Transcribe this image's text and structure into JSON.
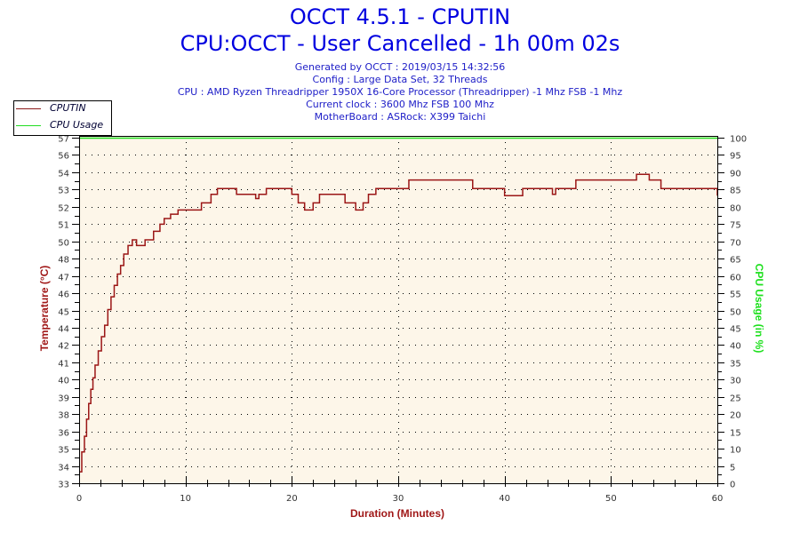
{
  "header": {
    "title": "OCCT 4.5.1 - CPUTIN",
    "subtitle": "CPU:OCCT - User Cancelled - 1h 00m 02s",
    "info_lines": [
      "Generated by OCCT : 2019/03/15 14:32:56",
      "Config : Large Data Set, 32 Threads",
      "CPU : AMD Ryzen Threadripper 1950X 16-Core Processor (Threadripper) -1 Mhz FSB -1 Mhz",
      "Current clock : 3600 Mhz FSB 100 Mhz",
      "MotherBoard : ASRock: X399 Taichi"
    ]
  },
  "legend": {
    "items": [
      {
        "label": "CPUTIN",
        "color": "#8b1a1a"
      },
      {
        "label": "CPU Usage",
        "color": "#22dd22"
      }
    ]
  },
  "colors": {
    "plot_bg": "#fdf6e9",
    "temp_line": "#9b1616",
    "usage_line": "#22e022",
    "axis": "#000000",
    "tick_label": "#333333"
  },
  "chart_data": {
    "type": "line",
    "title": "OCCT 4.5.1 - CPUTIN",
    "subtitle": "CPU:OCCT - User Cancelled - 1h 00m 02s",
    "xlabel": "Duration (Minutes)",
    "ylabel": "Temperature (°C)",
    "y2label": "CPU Usage (in %)",
    "xlim": [
      0,
      60
    ],
    "ylim": [
      33,
      57.4
    ],
    "y2lim": [
      0,
      100
    ],
    "x_ticks": [
      0,
      10,
      20,
      30,
      40,
      50,
      60
    ],
    "y_tick_labels": [
      "33",
      "34",
      "35",
      "36",
      "38",
      "39",
      "40",
      "41",
      "42",
      "44",
      "45",
      "46",
      "47",
      "48",
      "50",
      "51",
      "52",
      "53",
      "54",
      "56",
      "57"
    ],
    "y2_tick_labels": [
      "0",
      "5",
      "10",
      "15",
      "20",
      "25",
      "30",
      "35",
      "40",
      "45",
      "50",
      "55",
      "60",
      "65",
      "70",
      "75",
      "80",
      "85",
      "90",
      "95",
      "100"
    ],
    "grid": true,
    "legend_position": "top-left",
    "series": [
      {
        "name": "CPUTIN",
        "axis": "left",
        "step": true,
        "x": [
          0.0,
          0.25,
          0.5,
          0.7,
          0.9,
          1.1,
          1.3,
          1.5,
          1.8,
          2.1,
          2.4,
          2.7,
          3.0,
          3.3,
          3.6,
          3.9,
          4.2,
          4.6,
          5.0,
          5.4,
          5.8,
          6.2,
          7.0,
          7.6,
          8.0,
          8.6,
          9.3,
          10.0,
          11.5,
          12.4,
          13.0,
          13.8,
          14.8,
          16.6,
          16.9,
          17.6,
          19.4,
          20.0,
          20.6,
          21.2,
          22.0,
          22.6,
          23.0,
          24.0,
          25.0,
          26.0,
          26.7,
          27.2,
          27.9,
          31.0,
          31.4,
          37.0,
          37.2,
          40.0,
          40.2,
          41.7,
          44.5,
          44.8,
          45.2,
          46.7,
          46.9,
          50.5,
          52.4,
          52.6,
          53.6,
          54.7,
          55.0,
          59.6,
          60.0
        ],
        "values": [
          33.8,
          35.2,
          36.3,
          37.5,
          38.6,
          39.6,
          40.4,
          41.3,
          42.3,
          43.3,
          44.1,
          45.2,
          46.1,
          46.9,
          47.7,
          48.3,
          49.1,
          49.7,
          50.1,
          49.7,
          49.7,
          50.1,
          50.7,
          51.2,
          51.6,
          51.9,
          52.2,
          52.2,
          52.7,
          53.3,
          53.7,
          53.7,
          53.3,
          53.0,
          53.3,
          53.7,
          53.7,
          53.3,
          52.7,
          52.2,
          52.7,
          53.3,
          53.3,
          53.3,
          52.7,
          52.2,
          52.7,
          53.3,
          53.7,
          54.3,
          54.3,
          53.7,
          53.7,
          53.2,
          53.2,
          53.7,
          53.3,
          53.7,
          53.7,
          54.3,
          54.3,
          54.3,
          54.7,
          54.7,
          54.3,
          53.7,
          53.7,
          53.7,
          53.2
        ]
      },
      {
        "name": "CPU Usage",
        "axis": "right",
        "x": [
          0,
          60
        ],
        "values": [
          100,
          100
        ]
      }
    ]
  }
}
